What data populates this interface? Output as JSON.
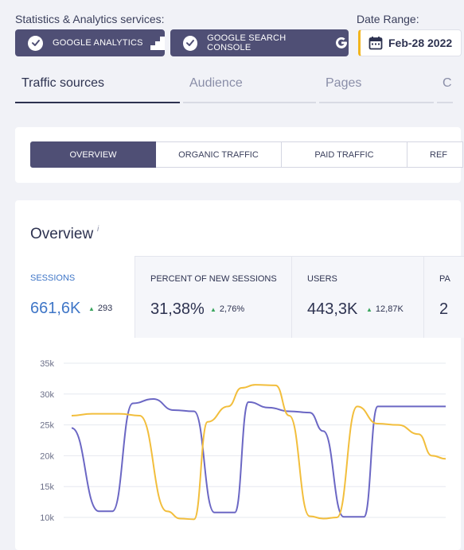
{
  "services": {
    "label": "Statistics & Analytics services:",
    "buttons": [
      {
        "label": "GOOGLE ANALYTICS",
        "icon": "google-analytics-icon"
      },
      {
        "label": "GOOGLE SEARCH CONSOLE",
        "icon": "google-g-icon"
      }
    ]
  },
  "date_range": {
    "label": "Date Range:",
    "value": "Feb-28 2022",
    "icon": "calendar-icon",
    "accent": "#f2b51e"
  },
  "main_tabs": [
    {
      "label": "Traffic sources",
      "active": true
    },
    {
      "label": "Audience"
    },
    {
      "label": "Pages"
    },
    {
      "label": "C"
    }
  ],
  "sub_tabs": [
    {
      "label": "OVERVIEW",
      "active": true
    },
    {
      "label": "ORGANIC TRAFFIC"
    },
    {
      "label": "PAID TRAFFIC"
    },
    {
      "label": "REF"
    }
  ],
  "overview": {
    "title": "Overview",
    "info": "i",
    "metrics": [
      {
        "label": "SESSIONS",
        "value": "661,6K",
        "delta": "293",
        "active": true
      },
      {
        "label": "PERCENT OF NEW SESSIONS",
        "value": "31,38%",
        "delta": "2,76%"
      },
      {
        "label": "USERS",
        "value": "443,3K",
        "delta": "12,87K"
      },
      {
        "label": "PA",
        "value": "2"
      }
    ]
  },
  "chart_data": {
    "type": "line",
    "y_ticks": [
      "35k",
      "30k",
      "25k",
      "20k",
      "15k",
      "10k"
    ],
    "ylim": [
      10000,
      35000
    ],
    "grid": true,
    "series": [
      {
        "color": "#6b67c4",
        "x": [
          0,
          4,
          6,
          9,
          12,
          15,
          18,
          21,
          24,
          26,
          29,
          32,
          35,
          37,
          40,
          43,
          45,
          47,
          50,
          53,
          55
        ],
        "values": [
          24500,
          11000,
          11000,
          28500,
          29200,
          27400,
          27200,
          10800,
          10800,
          28700,
          27800,
          27200,
          27000,
          24000,
          10100,
          10100,
          28000,
          28000,
          28000,
          28000,
          28000
        ]
      },
      {
        "color": "#f2be3c",
        "x": [
          0,
          3,
          7,
          10,
          14,
          16,
          18,
          20,
          23,
          25,
          27,
          30,
          32,
          35,
          37,
          39,
          42,
          45,
          48,
          51,
          53,
          55
        ],
        "values": [
          26500,
          26800,
          26800,
          26500,
          11000,
          9800,
          9700,
          25500,
          28000,
          31000,
          31500,
          31400,
          26500,
          10200,
          9800,
          10000,
          28000,
          25200,
          25000,
          23500,
          20000,
          19500
        ]
      }
    ]
  }
}
